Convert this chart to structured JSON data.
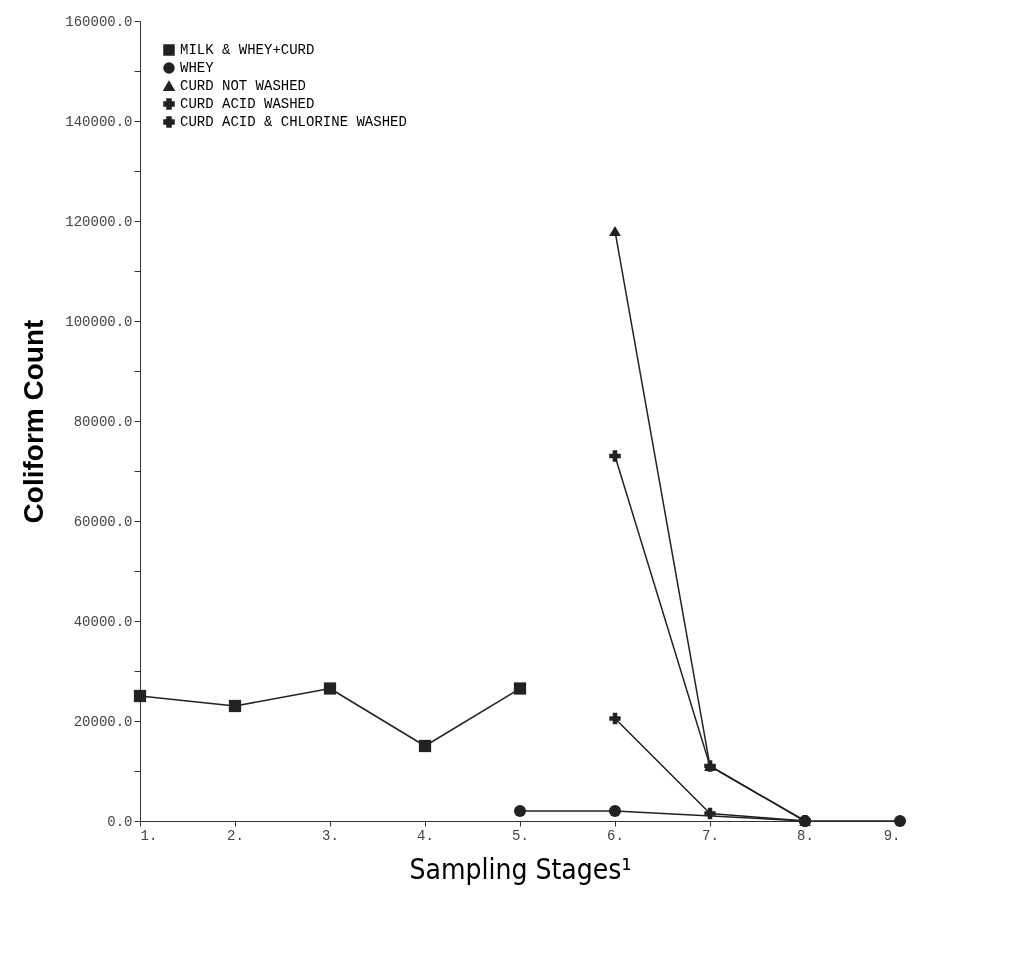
{
  "chart_data": {
    "type": "line",
    "xlabel": "Sampling Stages¹",
    "ylabel": "Coliform Count",
    "xlim": [
      1,
      9
    ],
    "xticks": [
      {
        "value": 1,
        "label": "1."
      },
      {
        "value": 2,
        "label": "2."
      },
      {
        "value": 3,
        "label": "3."
      },
      {
        "value": 4,
        "label": "4."
      },
      {
        "value": 5,
        "label": "5."
      },
      {
        "value": 6,
        "label": "6."
      },
      {
        "value": 7,
        "label": "7."
      },
      {
        "value": 8,
        "label": "8."
      },
      {
        "value": 9,
        "label": "9."
      }
    ],
    "ylim": [
      0,
      160000
    ],
    "yticks": [
      {
        "value": 0,
        "label": "0.0"
      },
      {
        "value": 10000,
        "label": null
      },
      {
        "value": 20000,
        "label": "20000.0"
      },
      {
        "value": 30000,
        "label": null
      },
      {
        "value": 40000,
        "label": "40000.0"
      },
      {
        "value": 50000,
        "label": null
      },
      {
        "value": 60000,
        "label": "60000.0"
      },
      {
        "value": 70000,
        "label": null
      },
      {
        "value": 80000,
        "label": "80000.0"
      },
      {
        "value": 90000,
        "label": null
      },
      {
        "value": 100000,
        "label": "100000.0"
      },
      {
        "value": 110000,
        "label": null
      },
      {
        "value": 120000,
        "label": "120000.0"
      },
      {
        "value": 130000,
        "label": null
      },
      {
        "value": 140000,
        "label": "140000.0"
      },
      {
        "value": 150000,
        "label": null
      },
      {
        "value": 160000,
        "label": "160000.0"
      }
    ],
    "grid": false,
    "legend": "top left",
    "series": [
      {
        "name": "MILK & WHEY+CURD",
        "color": "#222222",
        "marker": "square",
        "x": [
          1,
          2,
          3,
          4,
          5
        ],
        "values": [
          25000,
          23000,
          26500,
          15000,
          26500
        ]
      },
      {
        "name": "WHEY",
        "color": "#222222",
        "marker": "circle",
        "x": [
          5,
          6,
          8,
          9
        ],
        "values": [
          2000,
          2000,
          0,
          0
        ]
      },
      {
        "name": "CURD NOT WASHED",
        "color": "#222222",
        "marker": "triangle",
        "x": [
          6,
          7,
          8
        ],
        "values": [
          118000,
          11000,
          0
        ]
      },
      {
        "name": "CURD ACID WASHED",
        "color": "#222222",
        "marker": "cross",
        "x": [
          6,
          7,
          8
        ],
        "values": [
          73000,
          11000,
          0
        ]
      },
      {
        "name": "CURD ACID & CHLORINE WASHED",
        "color": "#222222",
        "marker": "cross",
        "x": [
          6,
          7,
          8
        ],
        "values": [
          20500,
          1500,
          0
        ]
      }
    ]
  }
}
